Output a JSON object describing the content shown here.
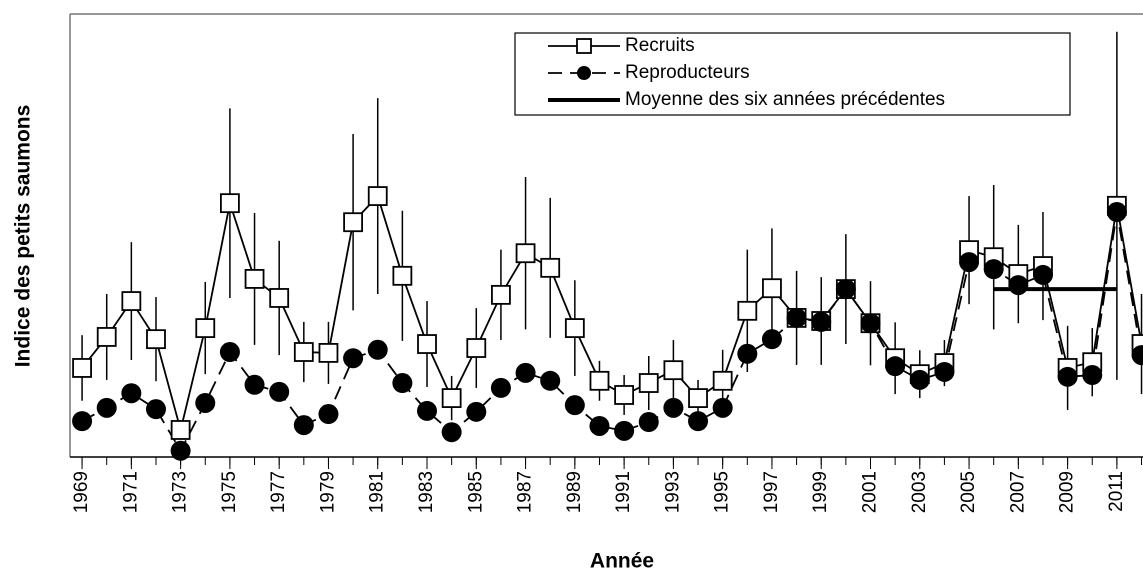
{
  "chart_data": {
    "type": "line",
    "xlabel": "Année",
    "ylabel": "Indice des petits saumons",
    "x": [
      1969,
      1970,
      1971,
      1972,
      1973,
      1974,
      1975,
      1976,
      1977,
      1978,
      1979,
      1980,
      1981,
      1982,
      1983,
      1984,
      1985,
      1986,
      1987,
      1988,
      1989,
      1990,
      1991,
      1992,
      1993,
      1994,
      1995,
      1996,
      1997,
      1998,
      1999,
      2000,
      2001,
      2002,
      2003,
      2004,
      2005,
      2006,
      2007,
      2008,
      2009,
      2010,
      2011,
      2012
    ],
    "series": [
      {
        "name": "Recruits",
        "color": "#000000",
        "marker": "square",
        "dash": false,
        "values": [
          20.1,
          27.1,
          35.2,
          26.6,
          6.1,
          29.1,
          57.3,
          40.2,
          35.9,
          23.7,
          23.5,
          53.0,
          58.9,
          40.9,
          25.5,
          13.3,
          24.6,
          36.6,
          46.0,
          42.7,
          29.1,
          17.2,
          14.0,
          16.7,
          19.6,
          13.3,
          17.2,
          33.0,
          38.1,
          31.4,
          30.7,
          37.9,
          30.2,
          22.3,
          18.7,
          21.2,
          46.7,
          45.1,
          41.3,
          43.1,
          20.1,
          21.4,
          56.7,
          25.5
        ],
        "errors": [
          7.4,
          9.7,
          13.3,
          9.5,
          0,
          10.4,
          21.4,
          14.9,
          12.9,
          6.8,
          7.0,
          19.9,
          22.1,
          14.7,
          9.7,
          5.0,
          9.0,
          10.2,
          17.2,
          15.8,
          10.8,
          4.5,
          4.5,
          6.1,
          6.8,
          4.1,
          7.0,
          13.8,
          13.5,
          10.6,
          9.9,
          12.4,
          9.5,
          8.1,
          5.4,
          5.2,
          12.2,
          16.3,
          11.1,
          12.2,
          9.5,
          7.7,
          39.3,
          11.3
        ]
      },
      {
        "name": "Reproducteurs",
        "color": "#000000",
        "marker": "circle",
        "dash": true,
        "values": [
          8.1,
          11.1,
          14.4,
          10.8,
          1.4,
          12.2,
          23.7,
          16.3,
          14.7,
          7.2,
          9.7,
          22.3,
          24.2,
          16.7,
          10.4,
          5.6,
          10.2,
          15.6,
          19.0,
          17.2,
          11.7,
          7.0,
          5.9,
          7.9,
          11.1,
          8.1,
          11.1,
          23.3,
          26.6,
          31.4,
          30.5,
          37.9,
          30.2,
          20.5,
          17.4,
          19.2,
          44.0,
          42.4,
          38.8,
          41.1,
          18.1,
          18.5,
          55.3,
          23.0
        ]
      }
    ],
    "mean_line": {
      "name": "Moyenne des six années précédentes",
      "color": "#000000",
      "x": [
        2006,
        2011
      ],
      "values": [
        37.9,
        37.9
      ]
    },
    "xlim": [
      1968.51,
      2012.06
    ],
    "xticks": [
      1969,
      1971,
      1973,
      1975,
      1977,
      1979,
      1981,
      1983,
      1985,
      1987,
      1989,
      1991,
      1993,
      1995,
      1997,
      1999,
      2001,
      2003,
      2005,
      2007,
      2009,
      2011
    ],
    "ylim": [
      0,
      100
    ],
    "legend": "upper right",
    "grid": false
  }
}
